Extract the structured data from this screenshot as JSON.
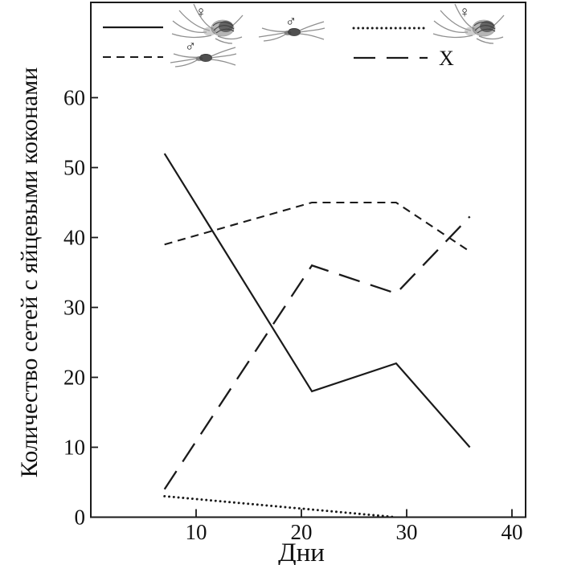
{
  "figure": {
    "xlabel": "Дни",
    "ylabel": "Количество сетей с яйцевыми коконами",
    "line_color": "#1a1a1a",
    "background_color": "#ffffff",
    "legend": {
      "row1": [
        {
          "line_style": "solid",
          "icon": "female-spider",
          "symbol": "♀"
        },
        {
          "line_style": null,
          "icon": "male-spider",
          "symbol": "♂"
        },
        {
          "line_style": "dotted",
          "icon": "female-spider",
          "symbol": "♀"
        }
      ],
      "row2": [
        {
          "line_style": "dashed",
          "icon": "male-spider",
          "symbol": "♂"
        },
        {
          "line_style": "long-dash",
          "icon": null,
          "label": "X"
        }
      ]
    }
  },
  "chart_data": {
    "type": "line",
    "title": "",
    "xlabel": "Дни",
    "ylabel": "Количество сетей с яйцевыми коконами",
    "xlim": [
      0,
      41.3
    ],
    "ylim": [
      0,
      73.7
    ],
    "xticks": [
      10,
      20,
      30,
      40
    ],
    "yticks": [
      0,
      10,
      20,
      30,
      40,
      50,
      60
    ],
    "grid": false,
    "legend_position": "top-inside",
    "series": [
      {
        "name": "female ♀ (solid)",
        "style": "solid",
        "x": [
          7,
          21,
          29,
          36
        ],
        "y": [
          52,
          18,
          22,
          10
        ]
      },
      {
        "name": "male ♂ (dashed)",
        "style": "dashed",
        "x": [
          7,
          21,
          29,
          36
        ],
        "y": [
          39,
          45,
          45,
          38
        ]
      },
      {
        "name": "pair ♂×♀ (dotted)",
        "style": "dotted",
        "x": [
          7,
          29
        ],
        "y": [
          3,
          0
        ]
      },
      {
        "name": "X (long-dash)",
        "style": "long-dash",
        "x": [
          7,
          21,
          29,
          36
        ],
        "y": [
          4,
          36,
          32,
          43
        ]
      }
    ]
  }
}
